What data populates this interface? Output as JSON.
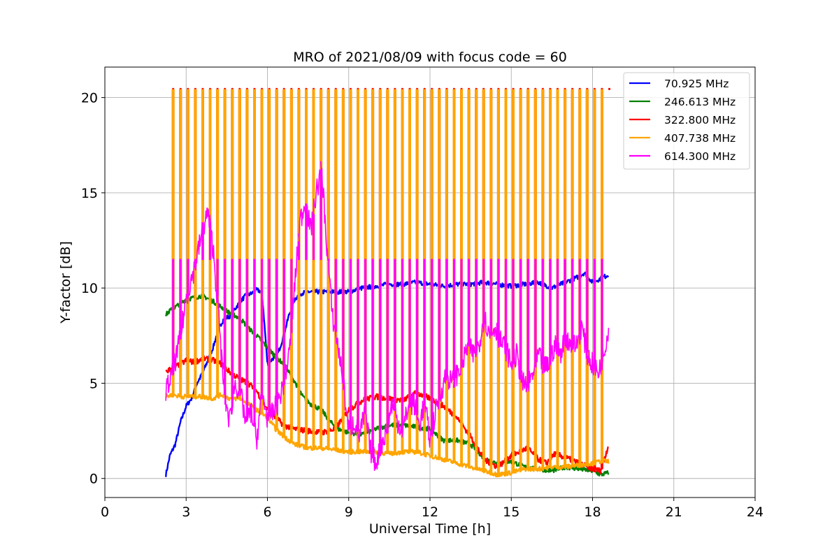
{
  "chart_data": {
    "type": "line",
    "title": "MRO of 2021/08/09 with focus code = 60",
    "xlabel": "Universal Time [h]",
    "ylabel": "Y-factor [dB]",
    "xlim": [
      0,
      24
    ],
    "ylim": [
      -1.0,
      21.6
    ],
    "xticks": [
      0,
      3,
      6,
      9,
      12,
      15,
      18,
      21,
      24
    ],
    "yticks": [
      0,
      5,
      10,
      15,
      20
    ],
    "grid": true,
    "legend_position": "upper right",
    "series": [
      {
        "name": " 70.925 MHz",
        "color": "#0000ff",
        "x": [
          2.25,
          2.4,
          2.6,
          2.8,
          3.0,
          3.2,
          3.4,
          3.6,
          3.8,
          4.0,
          4.2,
          4.4,
          4.6,
          4.8,
          5.0,
          5.2,
          5.4,
          5.6,
          5.8,
          6.0,
          6.2,
          6.4,
          6.6,
          6.8,
          7.0,
          7.2,
          7.5,
          8.0,
          8.5,
          9.0,
          9.5,
          10.0,
          10.5,
          11.0,
          11.5,
          12.0,
          12.5,
          13.0,
          13.5,
          14.0,
          14.5,
          15.0,
          15.5,
          16.0,
          16.5,
          17.0,
          17.5,
          17.7,
          18.0,
          18.3,
          18.6
        ],
        "values": [
          0.2,
          1.2,
          1.8,
          3.0,
          3.8,
          4.2,
          5.0,
          5.5,
          6.2,
          6.9,
          7.9,
          8.4,
          8.5,
          8.9,
          9.3,
          9.6,
          9.7,
          9.9,
          9.8,
          6.0,
          6.3,
          6.6,
          7.5,
          8.6,
          9.4,
          9.7,
          9.8,
          9.8,
          9.8,
          9.8,
          10.0,
          10.1,
          10.2,
          10.2,
          10.3,
          10.2,
          10.1,
          10.2,
          10.2,
          10.3,
          10.2,
          10.1,
          10.2,
          10.3,
          10.0,
          10.3,
          10.6,
          10.8,
          10.3,
          10.5,
          10.7
        ]
      },
      {
        "name": "246.613 MHz",
        "color": "#008000",
        "x": [
          2.25,
          2.4,
          2.6,
          2.8,
          3.0,
          3.3,
          3.6,
          4.0,
          4.3,
          4.6,
          5.0,
          5.3,
          5.6,
          6.0,
          6.3,
          6.6,
          7.0,
          7.3,
          7.6,
          8.0,
          8.3,
          8.6,
          9.0,
          9.5,
          10.0,
          10.5,
          11.0,
          11.5,
          12.0,
          12.5,
          13.0,
          13.5,
          14.0,
          14.5,
          15.0,
          15.5,
          16.0,
          16.5,
          17.0,
          17.5,
          18.0,
          18.3,
          18.6
        ],
        "values": [
          8.6,
          8.8,
          9.0,
          9.2,
          9.4,
          9.5,
          9.6,
          9.3,
          9.0,
          8.7,
          8.4,
          7.9,
          7.5,
          6.9,
          6.4,
          6.0,
          5.1,
          4.3,
          3.9,
          3.6,
          3.0,
          2.6,
          2.4,
          2.3,
          2.6,
          2.8,
          2.8,
          2.7,
          2.6,
          2.0,
          2.0,
          1.8,
          1.0,
          0.8,
          0.9,
          0.6,
          0.5,
          0.4,
          0.6,
          0.5,
          0.4,
          0.2,
          0.3
        ]
      },
      {
        "name": "322.800 MHz",
        "color": "#ff0000",
        "x": [
          2.25,
          2.5,
          2.8,
          3.0,
          3.3,
          3.6,
          4.0,
          4.3,
          4.6,
          5.0,
          5.3,
          5.6,
          6.0,
          6.3,
          6.6,
          7.0,
          7.5,
          8.0,
          8.5,
          9.0,
          9.5,
          10.0,
          10.5,
          11.0,
          11.5,
          12.0,
          12.5,
          13.0,
          13.5,
          14.0,
          14.5,
          15.0,
          15.3,
          15.6,
          16.0,
          16.3,
          16.6,
          17.0,
          17.5,
          18.0,
          18.3,
          18.6
        ],
        "values": [
          5.6,
          5.8,
          6.0,
          6.2,
          6.1,
          6.3,
          6.2,
          6.0,
          5.6,
          5.2,
          5.0,
          4.6,
          3.6,
          3.2,
          2.8,
          2.6,
          2.5,
          2.4,
          2.6,
          3.6,
          4.1,
          4.3,
          4.2,
          4.1,
          4.5,
          4.2,
          3.8,
          3.2,
          2.2,
          1.0,
          0.6,
          1.2,
          1.4,
          1.6,
          1.0,
          0.8,
          1.3,
          1.1,
          0.8,
          0.5,
          0.4,
          1.8
        ]
      },
      {
        "name": "407.738 MHz",
        "color": "#ffa500",
        "x": [
          2.25,
          2.5,
          2.8,
          3.0,
          3.5,
          4.0,
          4.3,
          4.6,
          5.0,
          5.3,
          5.6,
          6.0,
          6.3,
          6.6,
          7.0,
          7.5,
          8.0,
          8.5,
          9.0,
          9.5,
          10.0,
          10.5,
          11.0,
          11.5,
          12.0,
          12.5,
          13.0,
          13.5,
          14.0,
          14.5,
          15.0,
          15.5,
          16.0,
          16.5,
          17.0,
          17.5,
          18.0,
          18.3,
          18.6
        ],
        "values": [
          4.3,
          4.4,
          4.3,
          4.3,
          4.3,
          4.2,
          4.4,
          4.2,
          4.2,
          3.9,
          3.6,
          3.2,
          2.6,
          2.2,
          1.8,
          1.6,
          1.6,
          1.5,
          1.4,
          1.4,
          1.4,
          1.3,
          1.4,
          1.4,
          1.2,
          1.0,
          0.8,
          0.6,
          0.4,
          0.2,
          0.3,
          0.5,
          0.5,
          0.6,
          0.6,
          0.7,
          0.8,
          0.9,
          0.9
        ]
      },
      {
        "name": "614.300 MHz",
        "color": "#ff00ff",
        "x": [
          2.25,
          2.5,
          2.8,
          3.0,
          3.3,
          3.6,
          3.8,
          4.0,
          4.2,
          4.4,
          4.6,
          4.8,
          5.0,
          5.2,
          5.4,
          5.6,
          5.8,
          6.0,
          6.2,
          6.4,
          6.6,
          6.8,
          7.0,
          7.2,
          7.4,
          7.6,
          7.8,
          8.0,
          8.2,
          8.4,
          8.6,
          8.8,
          9.0,
          9.2,
          9.4,
          9.6,
          9.8,
          10.0,
          10.2,
          10.4,
          10.6,
          10.8,
          11.0,
          11.2,
          11.4,
          11.6,
          11.8,
          12.0,
          12.2,
          12.4,
          12.6,
          12.8,
          13.0,
          13.2,
          13.4,
          13.6,
          13.8,
          14.0,
          14.2,
          14.4,
          14.6,
          14.8,
          15.0,
          15.2,
          15.4,
          15.6,
          15.8,
          16.0,
          16.2,
          16.4,
          16.6,
          16.8,
          17.0,
          17.2,
          17.4,
          17.6,
          17.8,
          18.0,
          18.2,
          18.4,
          18.6
        ],
        "values": [
          4.6,
          5.5,
          7.5,
          9.5,
          11.0,
          13.0,
          14.0,
          12.0,
          8.5,
          4.5,
          3.0,
          5.0,
          4.5,
          3.0,
          3.5,
          2.0,
          4.5,
          3.2,
          3.5,
          4.0,
          5.0,
          6.5,
          10.0,
          13.5,
          14.5,
          13.0,
          15.0,
          16.3,
          12.0,
          8.5,
          7.0,
          5.0,
          2.5,
          3.0,
          2.2,
          3.5,
          1.5,
          0.8,
          1.8,
          2.5,
          4.0,
          3.0,
          2.5,
          3.8,
          4.0,
          2.8,
          4.0,
          2.0,
          3.5,
          4.5,
          5.5,
          5.0,
          5.5,
          6.0,
          7.0,
          6.5,
          7.0,
          8.5,
          7.5,
          8.0,
          7.2,
          6.8,
          6.0,
          6.5,
          5.0,
          4.8,
          5.5,
          6.5,
          5.8,
          6.0,
          7.0,
          6.5,
          7.5,
          7.0,
          7.0,
          8.0,
          6.5,
          6.0,
          5.5,
          6.5,
          8.0
        ]
      }
    ],
    "calibration_spikes": {
      "x_start": 2.5,
      "x_end": 18.6,
      "count": 60,
      "peak_values": {
        "322.800 MHz": 20.4,
        "407.738 MHz": 20.4,
        "614.300 MHz": 11.5
      }
    }
  }
}
